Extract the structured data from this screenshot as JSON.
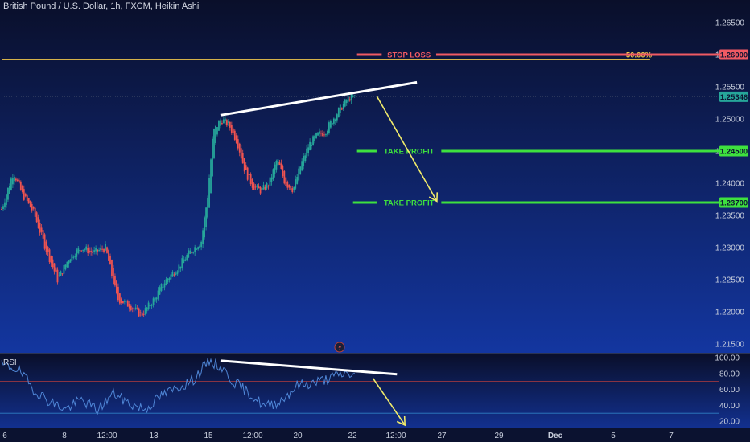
{
  "header": {
    "title": "British Pound / U.S. Dollar, 1h, FXCM, Heikin Ashi"
  },
  "rsi_panel": {
    "label": "RSI"
  },
  "colors": {
    "up": "#26a69a",
    "down": "#ef5350",
    "stop": "#f05a63",
    "take": "#3ee13e",
    "trend": "#ffffff",
    "arrow": "#f2ec6b",
    "hline": "#f2c94c",
    "rsi": "#4f86d6",
    "bg_top": "#0a0f2a",
    "bg_bottom": "#1336a0"
  },
  "chart_data": [
    {
      "type": "candlestick",
      "title": "British Pound / U.S. Dollar, 1h, FXCM, Heikin Ashi",
      "ylim": [
        1.214,
        1.2675
      ],
      "y_ticks": [
        "1.26500",
        "1.26000",
        "1.25500",
        "1.25000",
        "1.24500",
        "1.24000",
        "1.23500",
        "1.23000",
        "1.22500",
        "1.22000",
        "1.21500"
      ],
      "y_tick_values": [
        1.265,
        1.26,
        1.255,
        1.25,
        1.245,
        1.24,
        1.235,
        1.23,
        1.225,
        1.22,
        1.215
      ],
      "x_ticks": [
        "6",
        "8",
        "12:00",
        "13",
        "15",
        "12:00",
        "20",
        "22",
        "12:00",
        "27",
        "29",
        "Dec",
        "5",
        "7"
      ],
      "x_tick_bold": [
        false,
        false,
        false,
        false,
        false,
        false,
        false,
        false,
        false,
        false,
        false,
        true,
        false,
        false
      ],
      "x_tick_positions": [
        0,
        1,
        2,
        3,
        4,
        5,
        6,
        7,
        8,
        9,
        10,
        11,
        12,
        13
      ],
      "close_path": [
        [
          0,
          1.236
        ],
        [
          1.5,
          1.2418
        ],
        [
          2.5,
          1.2385
        ],
        [
          4,
          1.2355
        ],
        [
          5.5,
          1.23
        ],
        [
          7,
          1.225
        ],
        [
          8.5,
          1.2285
        ],
        [
          10,
          1.23
        ],
        [
          11.5,
          1.2292
        ],
        [
          13,
          1.23
        ],
        [
          14.5,
          1.222
        ],
        [
          16,
          1.221
        ],
        [
          17.5,
          1.2195
        ],
        [
          19,
          1.2218
        ],
        [
          20.5,
          1.2248
        ],
        [
          22,
          1.2268
        ],
        [
          23.5,
          1.2292
        ],
        [
          25,
          1.231
        ],
        [
          25.8,
          1.238
        ],
        [
          26.5,
          1.248
        ],
        [
          27.5,
          1.25
        ],
        [
          28.5,
          1.249
        ],
        [
          29.5,
          1.2465
        ],
        [
          30.5,
          1.2418
        ],
        [
          31.5,
          1.2395
        ],
        [
          32.5,
          1.2388
        ],
        [
          33.5,
          1.24
        ],
        [
          34.5,
          1.2438
        ],
        [
          35.5,
          1.24
        ],
        [
          36.5,
          1.239
        ],
        [
          37.5,
          1.243
        ],
        [
          38.5,
          1.246
        ],
        [
          39.5,
          1.2475
        ],
        [
          40.5,
          1.248
        ],
        [
          41.5,
          1.25
        ],
        [
          42.5,
          1.2518
        ],
        [
          43.5,
          1.2533
        ],
        [
          44.3,
          1.2534
        ]
      ],
      "price_labels": [
        {
          "name": "stop-loss-price",
          "text": "1.26000",
          "value": 1.26,
          "color": "#f05a63"
        },
        {
          "name": "last-price",
          "text": "1.25346",
          "value": 1.25346,
          "color": "#26a69a"
        },
        {
          "name": "take-profit-1-price",
          "text": "1.24500",
          "value": 1.245,
          "color": "#3ee13e"
        },
        {
          "name": "take-profit-2-price",
          "text": "1.23700",
          "value": 1.237,
          "color": "#3ee13e"
        }
      ],
      "annotations": {
        "stop_loss": {
          "text": "STOP LOSS",
          "value": 1.26,
          "from_x": 44.5,
          "to_x": 51
        },
        "take_profits": [
          {
            "text": "TAKE PROFIT",
            "value": 1.245,
            "from_x": 44.5,
            "to_x": 51
          },
          {
            "text": "TAKE PROFIT",
            "value": 1.237,
            "from_x": 44,
            "to_x": 51
          }
        ],
        "horizontal_line": {
          "value": 1.2592,
          "from_x": 0,
          "to_x": 81.2,
          "label": "50.00%"
        },
        "trend_line": {
          "from": [
            27.5,
            1.2506
          ],
          "to": [
            52,
            1.2557
          ]
        },
        "arrow": {
          "from": [
            47,
            1.2535
          ],
          "to": [
            54.5,
            1.2372
          ]
        }
      }
    },
    {
      "type": "line",
      "title": "RSI",
      "ylim": [
        14,
        102
      ],
      "y_ticks": [
        "100.00",
        "80.00",
        "60.00",
        "40.00",
        "20.00"
      ],
      "y_tick_values": [
        100,
        80,
        60,
        40,
        20
      ],
      "ref_lines": [
        70,
        30
      ],
      "series": [
        {
          "values_path": [
            [
              0,
              90
            ],
            [
              2,
              86
            ],
            [
              4,
              60
            ],
            [
              6,
              45
            ],
            [
              8,
              35
            ],
            [
              10,
              47
            ],
            [
              12,
              34
            ],
            [
              14,
              55
            ],
            [
              16,
              42
            ],
            [
              18,
              35
            ],
            [
              20,
              52
            ],
            [
              22,
              62
            ],
            [
              24,
              72
            ],
            [
              26,
              96
            ],
            [
              27.5,
              88
            ],
            [
              29,
              70
            ],
            [
              31,
              55
            ],
            [
              33,
              38
            ],
            [
              35,
              46
            ],
            [
              37,
              65
            ],
            [
              39,
              68
            ],
            [
              41,
              74
            ],
            [
              43,
              80
            ],
            [
              44.3,
              78
            ]
          ]
        }
      ],
      "annotations": {
        "trend_line": {
          "from": [
            27.5,
            96
          ],
          "to": [
            49.5,
            79
          ]
        },
        "arrow": {
          "from": [
            46.5,
            74
          ],
          "to": [
            50.5,
            10
          ]
        }
      }
    }
  ]
}
